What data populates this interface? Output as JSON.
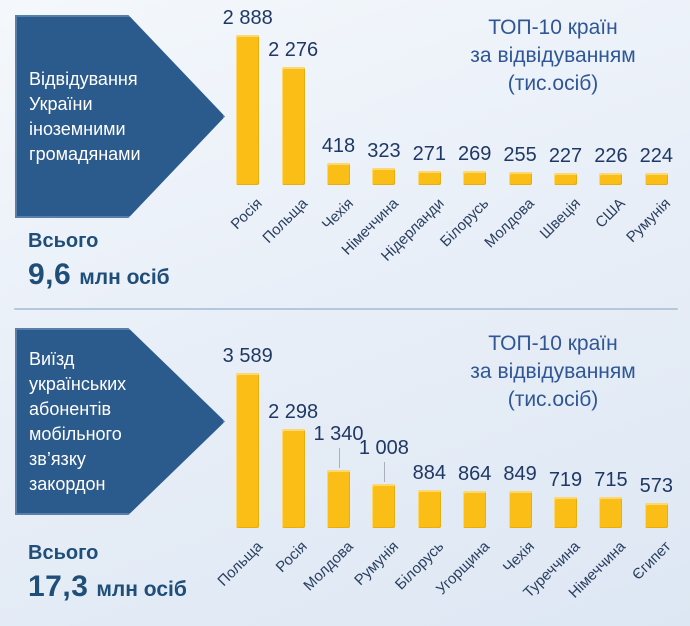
{
  "colors": {
    "background_top": "#f4f8fc",
    "background_bottom": "#dde7f3",
    "arrow": "#2b5a8c",
    "arrow_text": "#ffffff",
    "bar": "#fbbe17",
    "value_text": "#1f3864",
    "category_text": "#2a3f5f",
    "title_text": "#2f5795",
    "total_text": "#1f4e79",
    "divider": "#b5c7da"
  },
  "sections": [
    {
      "arrow_text": "Відвідування\nУкраїни\nіноземними\nгромадянами",
      "total_label": "Всього",
      "total_value": "9,6",
      "total_unit": "млн осіб",
      "chart_title": "ТОП-10 країн\nза відвідуванням\n(тис.осіб)"
    },
    {
      "arrow_text": "Виїзд\nукраїнських\nабонентів\nмобільного\nзв’язку\nзакордон",
      "total_label": "Всього",
      "total_value": "17,3",
      "total_unit": "млн осіб",
      "chart_title": "ТОП-10 країн\nза відвідуванням\n(тис.осіб)"
    }
  ],
  "chart_data": [
    {
      "type": "bar",
      "title": "ТОП-10 країн за відвідуванням (тис.осіб)",
      "subtitle": "Відвідування України іноземними громадянами",
      "total": "9,6 млн осіб",
      "categories": [
        "Росія",
        "Польща",
        "Чехія",
        "Німеччина",
        "Нідерланди",
        "Білорусь",
        "Молдова",
        "Швеція",
        "США",
        "Румунія"
      ],
      "values": [
        2888,
        2276,
        418,
        323,
        271,
        269,
        255,
        227,
        226,
        224
      ],
      "value_labels": [
        "2 888",
        "2 276",
        "418",
        "323",
        "271",
        "269",
        "255",
        "227",
        "226",
        "224"
      ],
      "ylim": [
        0,
        3000
      ],
      "grid": false,
      "legend": "none",
      "leader_indices": []
    },
    {
      "type": "bar",
      "title": "ТОП-10 країн за відвідуванням (тис.осіб)",
      "subtitle": "Виїзд українських абонентів мобільного зв’язку закордон",
      "total": "17,3 млн осіб",
      "categories": [
        "Польща",
        "Росія",
        "Молдова",
        "Румунія",
        "Білорусь",
        "Угорщина",
        "Чехія",
        "Туреччина",
        "Німеччина",
        "Єгипет"
      ],
      "values": [
        3589,
        2298,
        1340,
        1008,
        884,
        864,
        849,
        719,
        715,
        573
      ],
      "value_labels": [
        "3 589",
        "2 298",
        "1 340",
        "1 008",
        "884",
        "864",
        "849",
        "719",
        "715",
        "573"
      ],
      "ylim": [
        0,
        3700
      ],
      "grid": false,
      "legend": "none",
      "leader_indices": [
        2,
        3
      ]
    }
  ]
}
